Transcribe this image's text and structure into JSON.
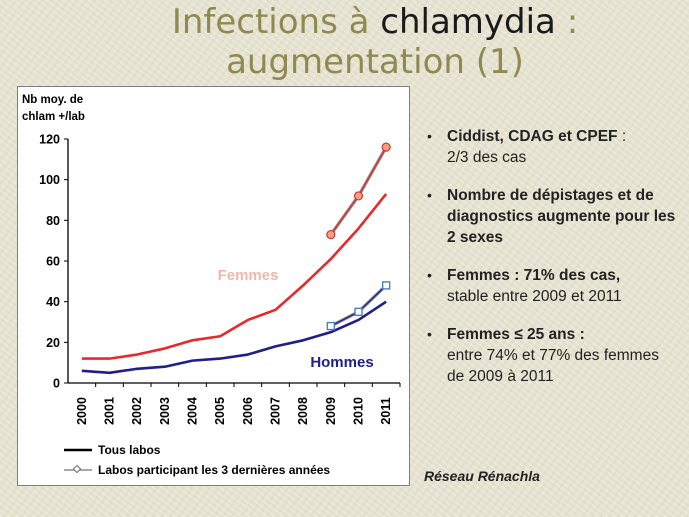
{
  "title": {
    "prefix": "Infections à ",
    "highlight": "chlamydia",
    "suffix": " : augmentation (1)"
  },
  "bullets": [
    {
      "bold": "Ciddist, CDAG et CPEF",
      "plain": " :",
      "line2": "2/3 des cas"
    },
    {
      "bold": "Nombre de dépistages et de diagnostics augmente pour les 2 sexes",
      "plain": "",
      "line2": ""
    },
    {
      "bold": "Femmes : 71% des cas,",
      "plain": "",
      "line2": "stable entre 2009 et 2011"
    },
    {
      "bold": "Femmes ≤ 25 ans :",
      "plain": "",
      "line2": "entre 74% et 77% des femmes de 2009 à 2011"
    }
  ],
  "source": "Réseau Rénachla",
  "chart_data": {
    "type": "line",
    "ylabel": "Nb moy. de chlam +/lab",
    "ylim": [
      0,
      120
    ],
    "yticks": [
      0,
      20,
      40,
      60,
      80,
      100,
      120
    ],
    "categories": [
      "2000",
      "2001",
      "2002",
      "2003",
      "2004",
      "2005",
      "2006",
      "2007",
      "2008",
      "2009",
      "2010",
      "2011"
    ],
    "series": [
      {
        "name": "Femmes",
        "label": "Femmes",
        "group": "Tous labos",
        "color": "#e8292b",
        "x": [
          "2000",
          "2001",
          "2002",
          "2003",
          "2004",
          "2005",
          "2006",
          "2007",
          "2008",
          "2009",
          "2010",
          "2011"
        ],
        "values": [
          12,
          12,
          14,
          17,
          21,
          23,
          31,
          36,
          48,
          61,
          76,
          93
        ]
      },
      {
        "name": "Hommes",
        "label": "Hommes",
        "group": "Tous labos",
        "color": "#1f1f8c",
        "x": [
          "2000",
          "2001",
          "2002",
          "2003",
          "2004",
          "2005",
          "2006",
          "2007",
          "2008",
          "2009",
          "2010",
          "2011"
        ],
        "values": [
          6,
          5,
          7,
          8,
          11,
          12,
          14,
          18,
          21,
          25,
          31,
          40
        ]
      },
      {
        "name": "Femmes - labos 3 dernières années",
        "group": "Labos participant les 3 dernières années",
        "color": "#e8292b",
        "marker": "circle",
        "x": [
          "2009",
          "2010",
          "2011"
        ],
        "values": [
          73,
          92,
          116
        ]
      },
      {
        "name": "Hommes - labos 3 dernières années",
        "group": "Labos participant les 3 dernières années",
        "color": "#1f1f8c",
        "marker": "square",
        "x": [
          "2009",
          "2010",
          "2011"
        ],
        "values": [
          28,
          35,
          48
        ]
      }
    ],
    "series_labels": {
      "femmes": "Femmes",
      "hommes": "Hommes"
    },
    "legend": [
      {
        "label": "Tous labos",
        "style": "solid"
      },
      {
        "label": "Labos participant les 3 dernières années",
        "style": "marker"
      }
    ]
  }
}
